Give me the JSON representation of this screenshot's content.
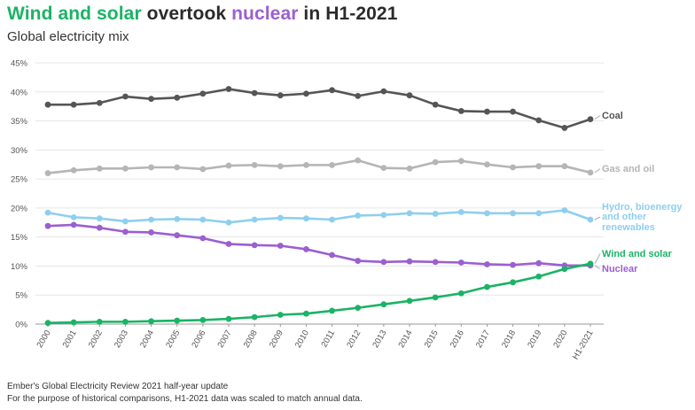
{
  "title": {
    "part1": "Wind and solar",
    "part2": " overtook ",
    "part3": "nuclear",
    "part4": " in H1-2021"
  },
  "subtitle": "Global electricity mix",
  "footer": {
    "line1": "Ember's Global Electricity Review 2021 half-year update",
    "line2": "For the purpose of historical comparisons, H1-2021 data was scaled to match annual data."
  },
  "colors": {
    "coal": "#555555",
    "gas": "#b5b5b5",
    "hydro": "#8ecfee",
    "nuclear": "#9b5fd1",
    "wind_solar": "#1bb365"
  },
  "chart_data": {
    "type": "line",
    "title": "Wind and solar overtook nuclear in H1-2021",
    "subtitle": "Global electricity mix",
    "xlabel": "",
    "ylabel": "",
    "ylim": [
      0,
      45
    ],
    "yticks": [
      "0%",
      "5%",
      "10%",
      "15%",
      "20%",
      "25%",
      "30%",
      "35%",
      "40%",
      "45%"
    ],
    "grid": true,
    "legend": "direct labels at right end of lines",
    "categories": [
      "2000",
      "2001",
      "2002",
      "2003",
      "2004",
      "2005",
      "2006",
      "2007",
      "2008",
      "2009",
      "2010",
      "2011",
      "2012",
      "2013",
      "2014",
      "2015",
      "2016",
      "2017",
      "2018",
      "2019",
      "2020",
      "H1-2021"
    ],
    "series": [
      {
        "name": "Coal",
        "color": "#555555",
        "values": [
          37.8,
          37.8,
          38.1,
          39.2,
          38.8,
          39.0,
          39.7,
          40.5,
          39.8,
          39.4,
          39.7,
          40.3,
          39.3,
          40.1,
          39.4,
          37.8,
          36.7,
          36.6,
          36.6,
          35.1,
          33.8,
          35.3
        ]
      },
      {
        "name": "Gas and oil",
        "color": "#b5b5b5",
        "values": [
          26.0,
          26.5,
          26.8,
          26.8,
          27.0,
          27.0,
          26.7,
          27.3,
          27.4,
          27.2,
          27.4,
          27.4,
          28.2,
          26.9,
          26.8,
          27.9,
          28.1,
          27.5,
          27.0,
          27.2,
          27.2,
          26.1
        ]
      },
      {
        "name": "Hydro, bioenergy and other renewables",
        "color": "#8ecfee",
        "values": [
          19.2,
          18.4,
          18.2,
          17.7,
          18.0,
          18.1,
          18.0,
          17.5,
          18.0,
          18.3,
          18.2,
          18.0,
          18.7,
          18.8,
          19.1,
          19.0,
          19.3,
          19.1,
          19.1,
          19.1,
          19.6,
          18.0
        ]
      },
      {
        "name": "Nuclear",
        "color": "#9b5fd1",
        "values": [
          16.9,
          17.1,
          16.6,
          15.9,
          15.8,
          15.3,
          14.8,
          13.8,
          13.6,
          13.5,
          12.9,
          11.9,
          10.9,
          10.7,
          10.8,
          10.7,
          10.6,
          10.3,
          10.2,
          10.5,
          10.1,
          10.1
        ]
      },
      {
        "name": "Wind and solar",
        "color": "#1bb365",
        "values": [
          0.2,
          0.3,
          0.4,
          0.4,
          0.5,
          0.6,
          0.7,
          0.9,
          1.2,
          1.6,
          1.8,
          2.3,
          2.8,
          3.4,
          4.0,
          4.6,
          5.3,
          6.4,
          7.2,
          8.2,
          9.5,
          10.4
        ]
      }
    ],
    "end_labels": [
      {
        "text": "Coal"
      },
      {
        "text": "Gas and oil"
      },
      {
        "lines": [
          "Hydro, bioenergy",
          "and other",
          "renewables"
        ]
      },
      {
        "text": "Wind and solar"
      },
      {
        "text": "Nuclear"
      }
    ]
  }
}
